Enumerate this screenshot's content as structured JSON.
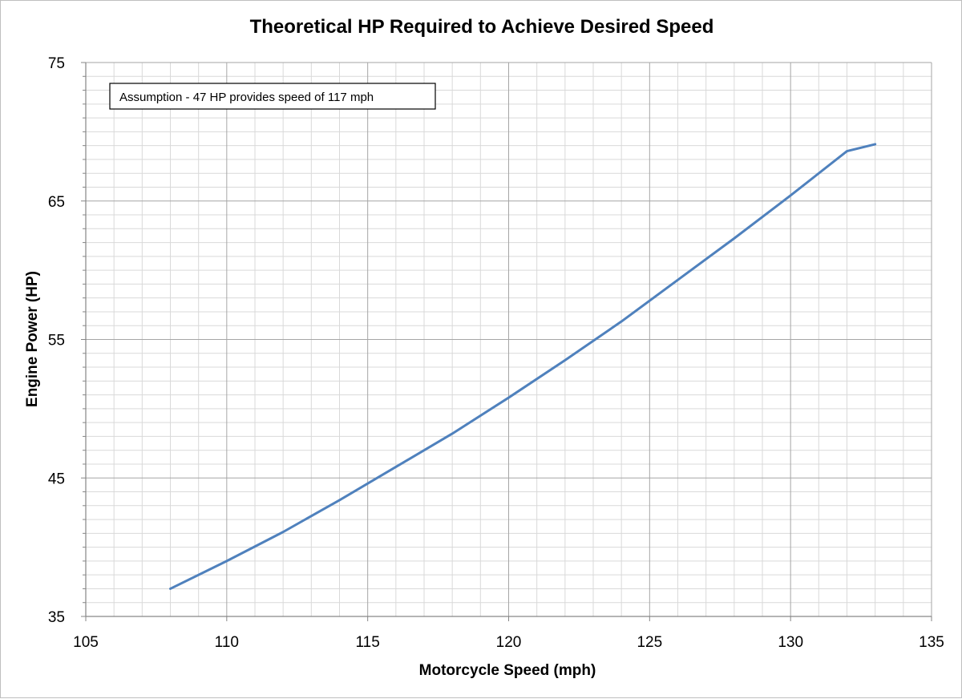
{
  "chart_data": {
    "type": "line",
    "title": "Theoretical HP Required to Achieve Desired Speed",
    "xlabel": "Motorcycle Speed (mph)",
    "ylabel": "Engine Power (HP)",
    "xlim": [
      105,
      135
    ],
    "ylim": [
      35,
      75
    ],
    "x_ticks": [
      "105",
      "110",
      "115",
      "120",
      "125",
      "130",
      "135"
    ],
    "y_ticks": [
      "35",
      "45",
      "55",
      "65",
      "75"
    ],
    "x_minor_step": 1,
    "y_minor_step": 1,
    "grid": true,
    "legend": "none",
    "annotation": "Assumption - 47 HP provides speed of 117 mph",
    "series": [
      {
        "color": "#4f81bd",
        "x": [
          108,
          110,
          112,
          114,
          116,
          118,
          120,
          122,
          124,
          126,
          128,
          130,
          132,
          133
        ],
        "y": [
          37.0,
          39.0,
          41.1,
          43.4,
          45.8,
          48.2,
          50.8,
          53.5,
          56.3,
          59.3,
          62.3,
          65.4,
          68.6,
          69.1
        ]
      }
    ]
  }
}
